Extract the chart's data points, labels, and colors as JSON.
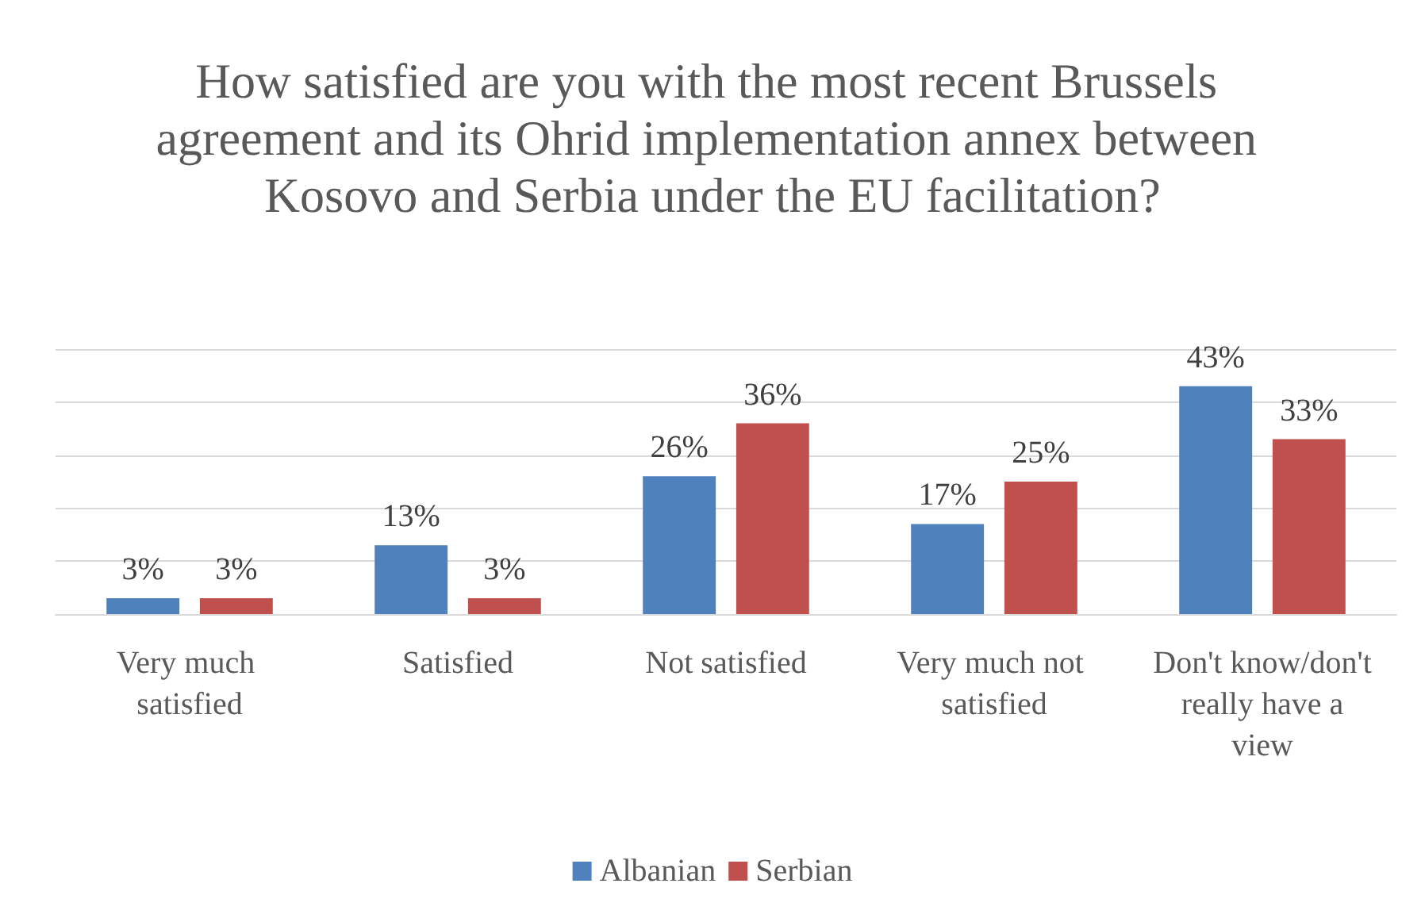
{
  "chart_data": {
    "type": "bar",
    "title": "How satisfied are you with the most recent Brussels agreement and its Ohrid implementation annex between Kosovo and Serbia under the EU facilitation?",
    "categories": [
      "Very much satisfied",
      "Satisfied",
      "Not satisfied",
      "Very much not satisfied",
      "Don't know/don't really have a view"
    ],
    "series": [
      {
        "name": "Albanian",
        "color": "#4f81bd",
        "values": [
          3,
          13,
          26,
          17,
          43
        ],
        "value_labels": [
          "3%",
          "13%",
          "26%",
          "17%",
          "43%"
        ]
      },
      {
        "name": "Serbian",
        "color": "#c0504d",
        "values": [
          3,
          3,
          36,
          25,
          33
        ],
        "value_labels": [
          "3%",
          "3%",
          "36%",
          "25%",
          "33%"
        ]
      }
    ],
    "ylim": [
      0,
      50
    ],
    "yticks": [
      {
        "value": 0,
        "label": null
      },
      {
        "value": 10,
        "label": null
      },
      {
        "value": 20,
        "label": null
      },
      {
        "value": 30,
        "label": null
      },
      {
        "value": 40,
        "label": null
      },
      {
        "value": 50,
        "label": null
      }
    ],
    "tick_labels": "x",
    "grid": "y",
    "legend": "bottom"
  }
}
